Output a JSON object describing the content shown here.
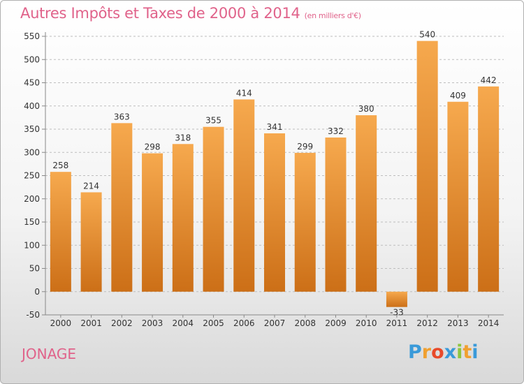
{
  "chart_data": {
    "type": "bar",
    "title": "Autres Impôts et Taxes de 2000 à 2014",
    "subtitle": "(en milliers d'€)",
    "categories": [
      "2000",
      "2001",
      "2002",
      "2003",
      "2004",
      "2005",
      "2006",
      "2007",
      "2008",
      "2009",
      "2010",
      "2011",
      "2012",
      "2013",
      "2014"
    ],
    "values": [
      258,
      214,
      363,
      298,
      318,
      355,
      414,
      341,
      299,
      332,
      380,
      -33,
      540,
      409,
      442
    ],
    "ylim": [
      -50,
      550
    ],
    "yticks": [
      -50,
      0,
      50,
      100,
      150,
      200,
      250,
      300,
      350,
      400,
      450,
      500,
      550
    ],
    "grid": "horizontal-dashed",
    "xlabel": "",
    "ylabel": ""
  },
  "commune": "JONAGE",
  "logo": {
    "text": "Proxiti",
    "letters": [
      "P",
      "r",
      "o",
      "x",
      "i",
      "t",
      "i"
    ],
    "colors": [
      "#3a9ad9",
      "#f0a030",
      "#e84a2a",
      "#3a9ad9",
      "#8dc63f",
      "#f0a030",
      "#3a9ad9"
    ]
  },
  "colors": {
    "bar_top": "#f6a94e",
    "bar_bottom": "#cc6f17",
    "title": "#e0628a",
    "commune": "#e0628a"
  }
}
